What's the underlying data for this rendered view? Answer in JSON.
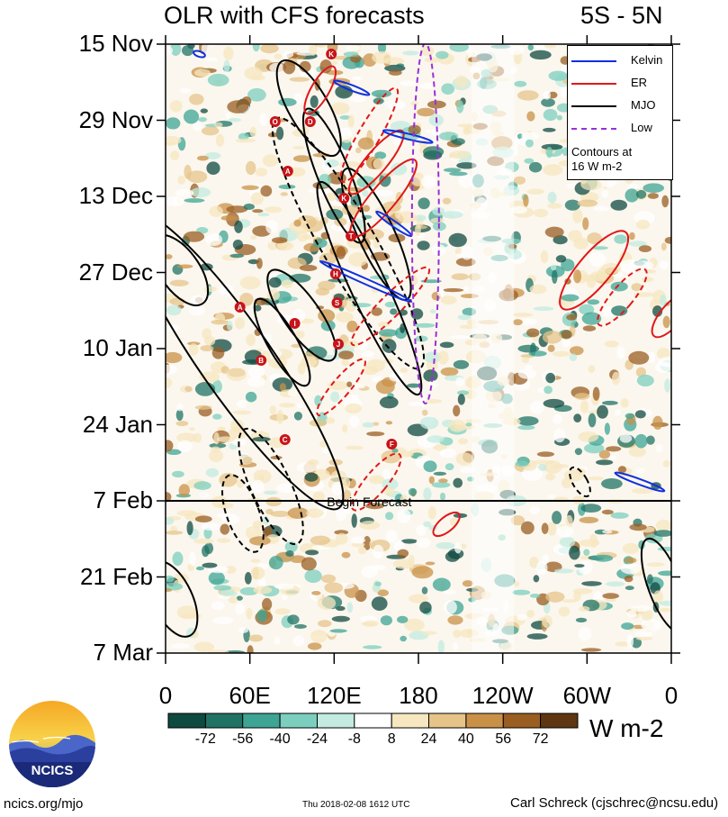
{
  "header": {
    "title": "OLR with CFS forecasts",
    "region": "5S - 5N"
  },
  "chart_data": {
    "type": "heatmap",
    "title": "OLR with CFS forecasts",
    "subtitle": "5S - 5N",
    "y_tick_labels": [
      "15 Nov",
      "29 Nov",
      "13 Dec",
      "27 Dec",
      "10 Jan",
      "24 Jan",
      "7 Feb",
      "21 Feb",
      "7 Mar"
    ],
    "x_tick_labels": [
      "0",
      "60E",
      "120E",
      "180",
      "120W",
      "60W",
      "0"
    ],
    "x_range_deg": [
      0,
      360
    ],
    "y_range": [
      "15 Nov",
      "7 Mar"
    ],
    "forecast_annotation": "Begin Forecast",
    "forecast_start": "7 Feb",
    "legend": {
      "items": [
        {
          "name": "Kelvin",
          "color": "#1030e0",
          "style": "solid"
        },
        {
          "name": "ER",
          "color": "#e01818",
          "style": "solid"
        },
        {
          "name": "MJO",
          "color": "#000000",
          "style": "solid"
        },
        {
          "name": "Low",
          "color": "#9a30d8",
          "style": "dashed"
        }
      ],
      "note_line1": "Contours at",
      "note_line2": "16 W m-2"
    },
    "colorbar": {
      "ticks": [
        "-72",
        "-56",
        "-40",
        "-24",
        "-8",
        "8",
        "24",
        "40",
        "56",
        "72"
      ],
      "units": "W m-2",
      "colors": [
        "#0f4a40",
        "#1f7364",
        "#3ea494",
        "#7ccfbe",
        "#c3ebe0",
        "#ffffff",
        "#f7e7c0",
        "#e6c489",
        "#c99148",
        "#9a5e22",
        "#5e3712"
      ]
    },
    "storm_markers": [
      "K",
      "O",
      "D",
      "A",
      "K",
      "T",
      "H",
      "S",
      "A",
      "I",
      "J",
      "B",
      "C",
      "F"
    ]
  },
  "footer": {
    "site": "ncics.org/mjo",
    "timestamp": "Thu 2018-02-08 1612 UTC",
    "author": "Carl Schreck (cjschrec@ncsu.edu)",
    "logo_text": "NCICS"
  }
}
